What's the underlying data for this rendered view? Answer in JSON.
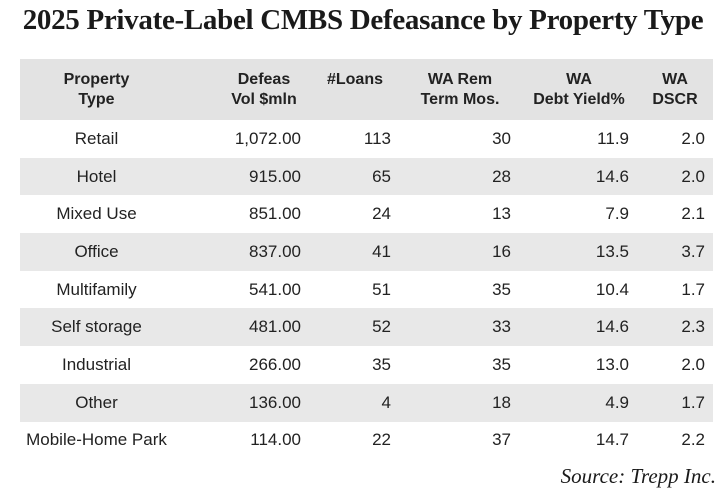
{
  "title": "2025 Private-Label CMBS Defeasance by Property Type",
  "source": "Source: Trepp Inc.",
  "chart_data": {
    "type": "table",
    "title": "2025 Private-Label CMBS Defeasance by Property Type",
    "columns": [
      [
        "Property",
        "Type"
      ],
      [
        "Defeas",
        "Vol $mln"
      ],
      [
        "#Loans",
        ""
      ],
      [
        "WA Rem",
        "Term Mos."
      ],
      [
        "WA",
        "Debt Yield%"
      ],
      [
        "WA",
        "DSCR"
      ]
    ],
    "rows": [
      [
        "Retail",
        "1,072.00",
        "113",
        "30",
        "11.9",
        "2.0"
      ],
      [
        "Hotel",
        "915.00",
        "65",
        "28",
        "14.6",
        "2.0"
      ],
      [
        "Mixed Use",
        "851.00",
        "24",
        "13",
        "7.9",
        "2.1"
      ],
      [
        "Office",
        "837.00",
        "41",
        "16",
        "13.5",
        "3.7"
      ],
      [
        "Multifamily",
        "541.00",
        "51",
        "35",
        "10.4",
        "1.7"
      ],
      [
        "Self storage",
        "481.00",
        "52",
        "33",
        "14.6",
        "2.3"
      ],
      [
        "Industrial",
        "266.00",
        "35",
        "35",
        "13.0",
        "2.0"
      ],
      [
        "Other",
        "136.00",
        "4",
        "18",
        "4.9",
        "1.7"
      ],
      [
        "Mobile-Home Park",
        "114.00",
        "22",
        "37",
        "14.7",
        "2.2"
      ]
    ],
    "source": "Source: Trepp Inc."
  },
  "colors": {
    "header_bg": "#e3e3e3",
    "stripe_bg": "#e8e8e8",
    "text": "#222222"
  }
}
